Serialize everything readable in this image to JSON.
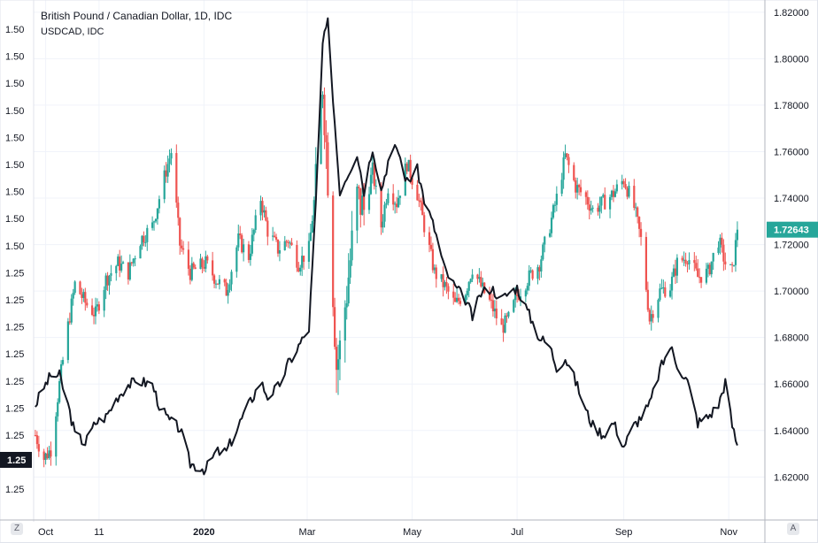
{
  "legend": {
    "title": "British Pound / Canadian Dollar, 1D, IDC",
    "subtitle": "USDCAD, IDC"
  },
  "corner_buttons": {
    "left": "Z",
    "right": "A"
  },
  "chart_data": [
    {
      "type": "candlestick",
      "name": "British Pound / Canadian Dollar, 1D, IDC",
      "axis": "right",
      "colors": {
        "up": "#26a69a",
        "down": "#ef5350"
      },
      "last_value_label": "1.72643",
      "last_value_color": "#26a69a",
      "yticks": [
        "1.82000",
        "1.80000",
        "1.78000",
        "1.76000",
        "1.74000",
        "1.72000",
        "1.70000",
        "1.68000",
        "1.66000",
        "1.64000",
        "1.62000"
      ],
      "ylim": [
        1.603,
        1.8245
      ],
      "approx_close_path": [
        [
          "2019-09-25",
          1.638
        ],
        [
          "2019-09-30",
          1.628
        ],
        [
          "2019-10-04",
          1.632
        ],
        [
          "2019-10-09",
          1.66
        ],
        [
          "2019-10-14",
          1.685
        ],
        [
          "2019-10-18",
          1.703
        ],
        [
          "2019-10-24",
          1.695
        ],
        [
          "2019-10-30",
          1.69
        ],
        [
          "2019-11-05",
          1.705
        ],
        [
          "2019-11-12",
          1.712
        ],
        [
          "2019-11-18",
          1.708
        ],
        [
          "2019-11-25",
          1.722
        ],
        [
          "2019-12-02",
          1.728
        ],
        [
          "2019-12-06",
          1.74
        ],
        [
          "2019-12-10",
          1.752
        ],
        [
          "2019-12-13",
          1.76
        ],
        [
          "2019-12-18",
          1.72
        ],
        [
          "2019-12-24",
          1.708
        ],
        [
          "2020-01-02",
          1.712
        ],
        [
          "2020-01-08",
          1.705
        ],
        [
          "2020-01-14",
          1.7
        ],
        [
          "2020-01-21",
          1.722
        ],
        [
          "2020-01-27",
          1.715
        ],
        [
          "2020-02-03",
          1.74
        ],
        [
          "2020-02-07",
          1.726
        ],
        [
          "2020-02-13",
          1.718
        ],
        [
          "2020-02-19",
          1.722
        ],
        [
          "2020-02-25",
          1.712
        ],
        [
          "2020-03-02",
          1.718
        ],
        [
          "2020-03-06",
          1.745
        ],
        [
          "2020-03-10",
          1.79
        ],
        [
          "2020-03-13",
          1.75
        ],
        [
          "2020-03-18",
          1.668
        ],
        [
          "2020-03-20",
          1.675
        ],
        [
          "2020-03-24",
          1.7
        ],
        [
          "2020-03-30",
          1.74
        ],
        [
          "2020-04-03",
          1.735
        ],
        [
          "2020-04-08",
          1.752
        ],
        [
          "2020-04-13",
          1.728
        ],
        [
          "2020-04-17",
          1.745
        ],
        [
          "2020-04-22",
          1.738
        ],
        [
          "2020-04-28",
          1.755
        ],
        [
          "2020-05-04",
          1.742
        ],
        [
          "2020-05-08",
          1.728
        ],
        [
          "2020-05-14",
          1.708
        ],
        [
          "2020-05-20",
          1.702
        ],
        [
          "2020-05-26",
          1.694
        ],
        [
          "2020-06-01",
          1.7
        ],
        [
          "2020-06-05",
          1.71
        ],
        [
          "2020-06-10",
          1.702
        ],
        [
          "2020-06-16",
          1.694
        ],
        [
          "2020-06-22",
          1.684
        ],
        [
          "2020-06-26",
          1.688
        ],
        [
          "2020-07-01",
          1.698
        ],
        [
          "2020-07-07",
          1.705
        ],
        [
          "2020-07-14",
          1.712
        ],
        [
          "2020-07-20",
          1.728
        ],
        [
          "2020-07-24",
          1.74
        ],
        [
          "2020-07-29",
          1.758
        ],
        [
          "2020-08-04",
          1.745
        ],
        [
          "2020-08-10",
          1.74
        ],
        [
          "2020-08-14",
          1.735
        ],
        [
          "2020-08-20",
          1.738
        ],
        [
          "2020-08-26",
          1.742
        ],
        [
          "2020-09-01",
          1.748
        ],
        [
          "2020-09-07",
          1.736
        ],
        [
          "2020-09-11",
          1.722
        ],
        [
          "2020-09-16",
          1.688
        ],
        [
          "2020-09-22",
          1.7
        ],
        [
          "2020-09-28",
          1.702
        ],
        [
          "2020-10-02",
          1.712
        ],
        [
          "2020-10-08",
          1.715
        ],
        [
          "2020-10-14",
          1.706
        ],
        [
          "2020-10-20",
          1.708
        ],
        [
          "2020-10-26",
          1.722
        ],
        [
          "2020-10-30",
          1.712
        ],
        [
          "2020-11-03",
          1.708
        ],
        [
          "2020-11-06",
          1.726
        ]
      ]
    },
    {
      "type": "line",
      "name": "USDCAD, IDC",
      "axis": "left",
      "color": "#131722",
      "last_value_label": "1.25",
      "yticks": [
        "1.50",
        "1.50",
        "1.50",
        "1.50",
        "1.50",
        "1.50",
        "1.50",
        "1.50",
        "1.50",
        "1.25",
        "1.25",
        "1.25",
        "1.25",
        "1.25",
        "1.25",
        "1.25",
        "1.25",
        "1.25"
      ],
      "points": [
        [
          "2019-09-25",
          1.322
        ],
        [
          "2019-09-30",
          1.328
        ],
        [
          "2019-10-04",
          1.332
        ],
        [
          "2019-10-09",
          1.332
        ],
        [
          "2019-10-14",
          1.322
        ],
        [
          "2019-10-18",
          1.312
        ],
        [
          "2019-10-24",
          1.309
        ],
        [
          "2019-10-30",
          1.316
        ],
        [
          "2019-11-05",
          1.318
        ],
        [
          "2019-11-12",
          1.325
        ],
        [
          "2019-11-18",
          1.329
        ],
        [
          "2019-11-25",
          1.33
        ],
        [
          "2019-12-02",
          1.329
        ],
        [
          "2019-12-06",
          1.322
        ],
        [
          "2019-12-10",
          1.318
        ],
        [
          "2019-12-13",
          1.316
        ],
        [
          "2019-12-18",
          1.314
        ],
        [
          "2019-12-24",
          1.302
        ],
        [
          "2020-01-02",
          1.3
        ],
        [
          "2020-01-08",
          1.306
        ],
        [
          "2020-01-14",
          1.306
        ],
        [
          "2020-01-21",
          1.315
        ],
        [
          "2020-01-27",
          1.322
        ],
        [
          "2020-02-03",
          1.33
        ],
        [
          "2020-02-07",
          1.325
        ],
        [
          "2020-02-13",
          1.328
        ],
        [
          "2020-02-19",
          1.336
        ],
        [
          "2020-02-25",
          1.342
        ],
        [
          "2020-03-02",
          1.348
        ],
        [
          "2020-03-06",
          1.39
        ],
        [
          "2020-03-10",
          1.445
        ],
        [
          "2020-03-13",
          1.452
        ],
        [
          "2020-03-18",
          1.41
        ],
        [
          "2020-03-20",
          1.395
        ],
        [
          "2020-03-24",
          1.4
        ],
        [
          "2020-03-30",
          1.408
        ],
        [
          "2020-04-03",
          1.395
        ],
        [
          "2020-04-08",
          1.41
        ],
        [
          "2020-04-13",
          1.395
        ],
        [
          "2020-04-17",
          1.405
        ],
        [
          "2020-04-22",
          1.41
        ],
        [
          "2020-04-28",
          1.398
        ],
        [
          "2020-05-04",
          1.402
        ],
        [
          "2020-05-08",
          1.392
        ],
        [
          "2020-05-14",
          1.382
        ],
        [
          "2020-05-20",
          1.368
        ],
        [
          "2020-05-26",
          1.362
        ],
        [
          "2020-06-01",
          1.358
        ],
        [
          "2020-06-05",
          1.352
        ],
        [
          "2020-06-10",
          1.36
        ],
        [
          "2020-06-16",
          1.362
        ],
        [
          "2020-06-22",
          1.358
        ],
        [
          "2020-06-26",
          1.36
        ],
        [
          "2020-07-01",
          1.362
        ],
        [
          "2020-07-07",
          1.354
        ],
        [
          "2020-07-14",
          1.345
        ],
        [
          "2020-07-20",
          1.342
        ],
        [
          "2020-07-24",
          1.335
        ],
        [
          "2020-07-29",
          1.338
        ],
        [
          "2020-08-04",
          1.33
        ],
        [
          "2020-08-10",
          1.32
        ],
        [
          "2020-08-14",
          1.315
        ],
        [
          "2020-08-20",
          1.312
        ],
        [
          "2020-08-26",
          1.316
        ],
        [
          "2020-09-01",
          1.308
        ],
        [
          "2020-09-07",
          1.315
        ],
        [
          "2020-09-11",
          1.318
        ],
        [
          "2020-09-16",
          1.322
        ],
        [
          "2020-09-22",
          1.334
        ],
        [
          "2020-09-28",
          1.342
        ],
        [
          "2020-10-02",
          1.336
        ],
        [
          "2020-10-08",
          1.33
        ],
        [
          "2020-10-14",
          1.316
        ],
        [
          "2020-10-20",
          1.318
        ],
        [
          "2020-10-26",
          1.322
        ],
        [
          "2020-10-30",
          1.33
        ],
        [
          "2020-11-03",
          1.315
        ],
        [
          "2020-11-06",
          1.308
        ]
      ]
    }
  ],
  "x_axis": {
    "labels": [
      {
        "text": "Oct",
        "date": "2019-10-01",
        "bold": false
      },
      {
        "text": "11",
        "date": "2019-11-01",
        "bold": false
      },
      {
        "text": "2020",
        "date": "2020-01-01",
        "bold": true
      },
      {
        "text": "Mar",
        "date": "2020-03-01",
        "bold": false
      },
      {
        "text": "May",
        "date": "2020-05-01",
        "bold": false
      },
      {
        "text": "Jul",
        "date": "2020-07-01",
        "bold": false
      },
      {
        "text": "Sep",
        "date": "2020-09-01",
        "bold": false
      },
      {
        "text": "Nov",
        "date": "2020-11-01",
        "bold": false
      }
    ],
    "range": [
      "2019-09-24",
      "2020-11-22"
    ]
  },
  "grid": true,
  "legend_position": "top-left"
}
